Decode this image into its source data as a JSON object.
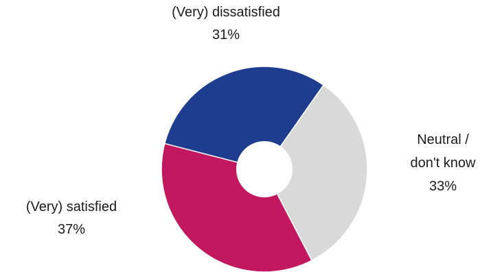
{
  "chart_data": {
    "type": "pie",
    "donut": true,
    "title": "",
    "categories": [
      "(Very) dissatisfied",
      "Neutral / don't know",
      "(Very) satisfied"
    ],
    "values": [
      31,
      33,
      37
    ],
    "value_labels": [
      "31%",
      "33%",
      "37%"
    ],
    "label_lines": {
      "neutral": [
        "Neutral /",
        "don't know"
      ]
    },
    "colors": [
      "#1e3d8f",
      "#d9d9d9",
      "#c2185f"
    ],
    "legend": "none"
  }
}
